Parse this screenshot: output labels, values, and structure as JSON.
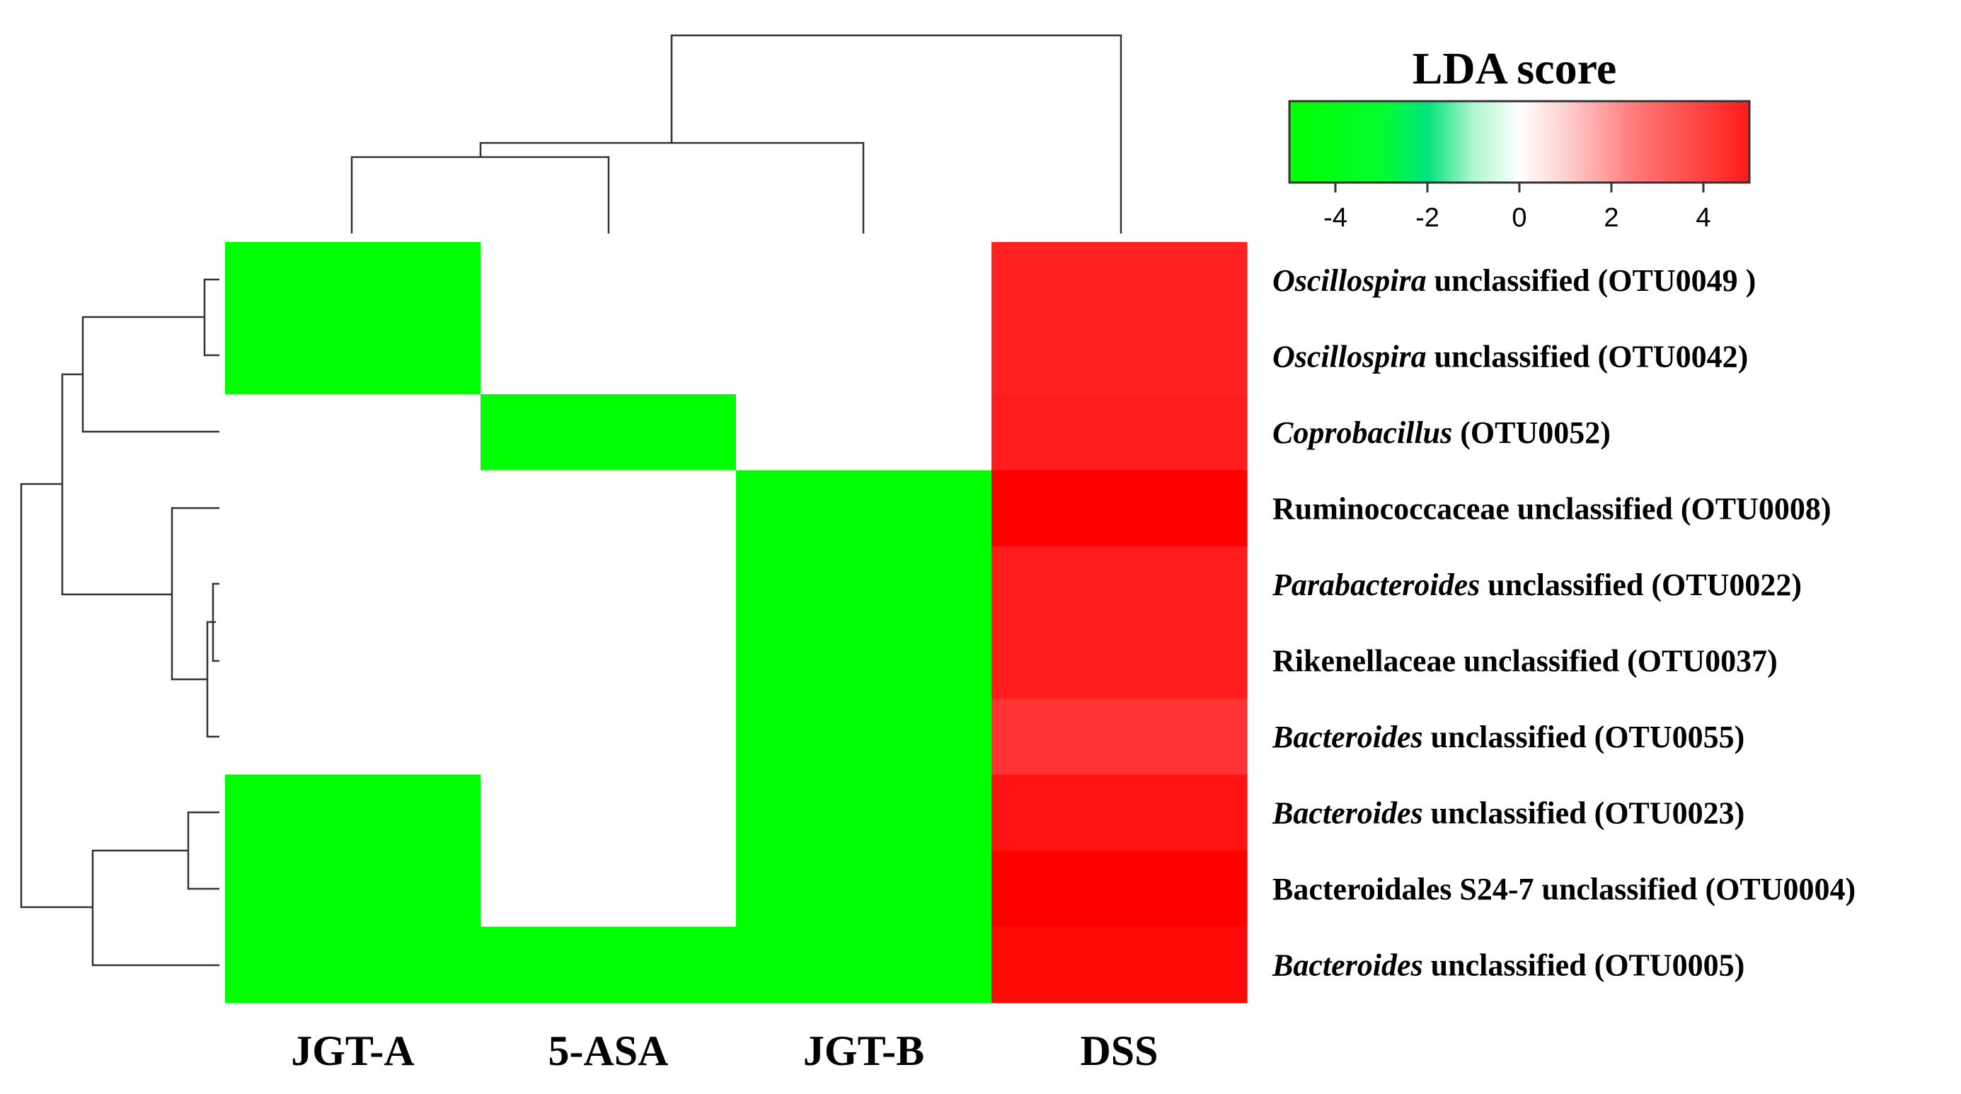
{
  "chart_data": {
    "type": "heatmap",
    "title": "LDA score",
    "columns": [
      "JGT-A",
      "5-ASA",
      "JGT-B",
      "DSS"
    ],
    "rows": [
      {
        "italic": "Oscillospira",
        "plain": " unclassified (OTU0049 )"
      },
      {
        "italic": "Oscillospira",
        "plain": " unclassified (OTU0042)"
      },
      {
        "italic": "Coprobacillus",
        "plain": " (OTU0052)"
      },
      {
        "italic": "",
        "plain": "Ruminococcaceae  unclassified (OTU0008)"
      },
      {
        "italic": "Parabacteroides",
        "plain": " unclassified (OTU0022)"
      },
      {
        "italic": "",
        "plain": "Rikenellaceae  unclassified (OTU0037)"
      },
      {
        "italic": "Bacteroides",
        "plain": " unclassified (OTU0055)"
      },
      {
        "italic": "Bacteroides",
        "plain": " unclassified (OTU0023)"
      },
      {
        "italic": "",
        "plain": "Bacteroidales  S24-7 unclassified (OTU0004)"
      },
      {
        "italic": "Bacteroides",
        "plain": " unclassified (OTU0005)"
      }
    ],
    "values": [
      [
        -5,
        0,
        0,
        4.3
      ],
      [
        -5,
        0,
        0,
        4.3
      ],
      [
        0,
        -5,
        0,
        4.4
      ],
      [
        0,
        0,
        -5,
        5.0
      ],
      [
        0,
        0,
        -5,
        4.4
      ],
      [
        0,
        0,
        -5,
        4.4
      ],
      [
        0,
        0,
        -5,
        3.9
      ],
      [
        -5,
        0,
        -5,
        4.6
      ],
      [
        -5,
        0,
        -5,
        5.0
      ],
      [
        -5,
        -5,
        -5,
        4.8
      ]
    ],
    "colorbar": {
      "range": [
        -5,
        5
      ],
      "ticks": [
        -4,
        -2,
        0,
        2,
        4
      ],
      "colors": [
        "#00ff00",
        "#00e37a",
        "#ffffff",
        "#ff2222"
      ]
    },
    "row_dendrogram": "hierarchical clustering of OTUs",
    "column_dendrogram": "hierarchical clustering of groups"
  }
}
